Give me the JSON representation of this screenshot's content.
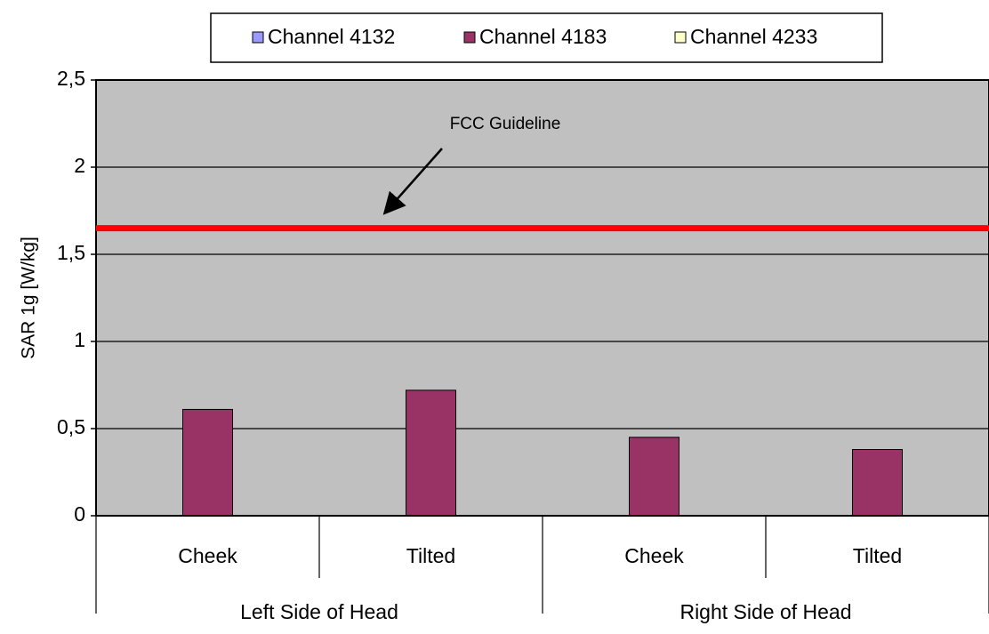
{
  "chart_data": {
    "type": "bar",
    "y_axis_label": "SAR 1g [W/kg]",
    "categories": [
      "Cheek",
      "Tilted",
      "Cheek",
      "Tilted"
    ],
    "groups": [
      "Left Side of Head",
      "Right Side of Head"
    ],
    "series": [
      {
        "name": "Channel 4132",
        "color": "#9999ff",
        "values": [
          null,
          null,
          null,
          null
        ]
      },
      {
        "name": "Channel 4183",
        "color": "#993366",
        "values": [
          0.61,
          0.72,
          0.45,
          0.38
        ]
      },
      {
        "name": "Channel 4233",
        "color": "#ffffcc",
        "values": [
          null,
          null,
          null,
          null
        ]
      }
    ],
    "ylim": [
      0,
      2.5
    ],
    "yticks": [
      0,
      {
        "value": 0.5,
        "label": "0,5"
      },
      1,
      {
        "value": 1.5,
        "label": "1,5"
      },
      2,
      {
        "value": 2.5,
        "label": "2,5"
      }
    ],
    "grid": true,
    "plot_background": "#c0c0c0",
    "reference_line": {
      "value": 1.65,
      "color": "#ff0000"
    },
    "annotation": "FCC Guideline",
    "legend": "top"
  }
}
